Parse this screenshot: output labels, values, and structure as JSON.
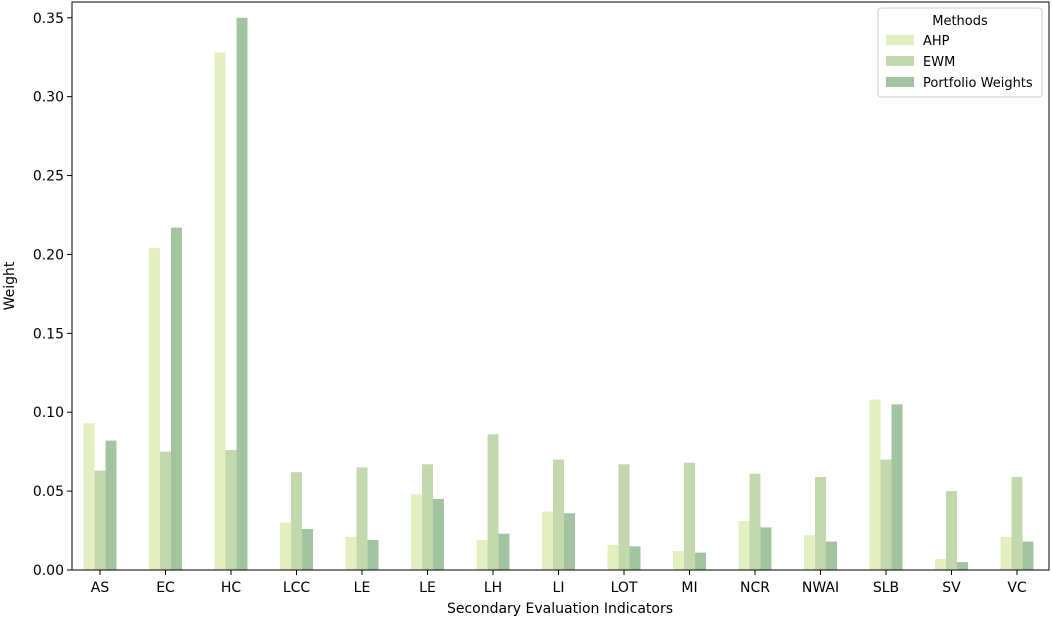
{
  "chart_data": {
    "type": "bar",
    "xlabel": "Secondary Evaluation Indicators",
    "ylabel": "Weight",
    "ylim": [
      0,
      0.36
    ],
    "yticks": [
      "0.00",
      "0.05",
      "0.10",
      "0.15",
      "0.20",
      "0.25",
      "0.30",
      "0.35"
    ],
    "ytick_values": [
      0,
      0.05,
      0.1,
      0.15,
      0.2,
      0.25,
      0.3,
      0.35
    ],
    "grid": false,
    "legend_position": "top-right",
    "legend_title": "Methods",
    "categories": [
      "AS",
      "EC",
      "HC",
      "LCC",
      "LE",
      "LE",
      "LH",
      "LI",
      "LOT",
      "MI",
      "NCR",
      "NWAI",
      "SLB",
      "SV",
      "VC"
    ],
    "series": [
      {
        "name": "AHP",
        "color": "#e3efc0",
        "values": [
          0.093,
          0.204,
          0.328,
          0.03,
          0.021,
          0.048,
          0.019,
          0.037,
          0.016,
          0.012,
          0.031,
          0.022,
          0.108,
          0.007,
          0.021
        ]
      },
      {
        "name": "EWM",
        "color": "#c4d8ad",
        "values": [
          0.063,
          0.075,
          0.076,
          0.062,
          0.065,
          0.067,
          0.086,
          0.07,
          0.067,
          0.068,
          0.061,
          0.059,
          0.07,
          0.05,
          0.059
        ]
      },
      {
        "name": "Portfolio Weights",
        "color": "#a3c4a0",
        "values": [
          0.082,
          0.217,
          0.35,
          0.026,
          0.019,
          0.045,
          0.023,
          0.036,
          0.015,
          0.011,
          0.027,
          0.018,
          0.105,
          0.005,
          0.018
        ]
      }
    ]
  }
}
